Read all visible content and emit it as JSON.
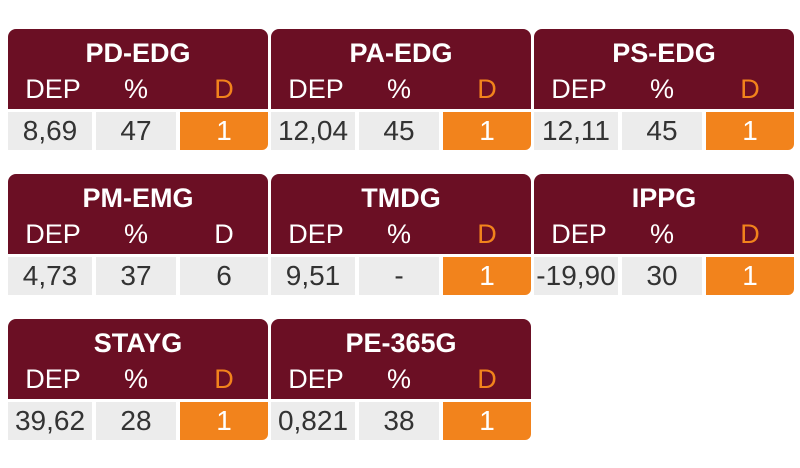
{
  "columns": {
    "dep": "DEP",
    "pct": "%",
    "d": "D"
  },
  "colors": {
    "header_bg": "#6b0f24",
    "alert": "#f2831c",
    "cell_bg": "#ececec"
  },
  "cards": [
    {
      "title": "PD-EDG",
      "dep": "8,69",
      "pct": "47",
      "d": "1",
      "alert": true
    },
    {
      "title": "PA-EDG",
      "dep": "12,04",
      "pct": "45",
      "d": "1",
      "alert": true
    },
    {
      "title": "PS-EDG",
      "dep": "12,11",
      "pct": "45",
      "d": "1",
      "alert": true
    },
    {
      "title": "PM-EMG",
      "dep": "4,73",
      "pct": "37",
      "d": "6",
      "alert": false
    },
    {
      "title": "TMDG",
      "dep": "9,51",
      "pct": "-",
      "d": "1",
      "alert": true
    },
    {
      "title": "IPPG",
      "dep": "-19,90",
      "pct": "30",
      "d": "1",
      "alert": true
    },
    {
      "title": "STAYG",
      "dep": "39,62",
      "pct": "28",
      "d": "1",
      "alert": true
    },
    {
      "title": "PE-365G",
      "dep": "0,821",
      "pct": "38",
      "d": "1",
      "alert": true
    }
  ]
}
